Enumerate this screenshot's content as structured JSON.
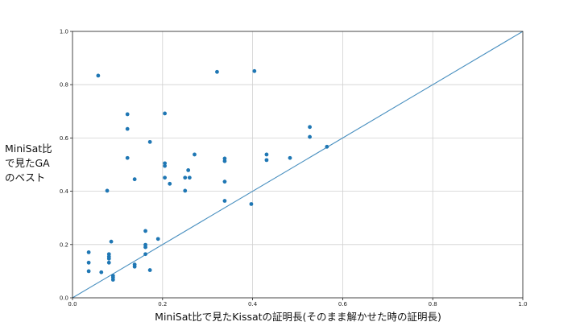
{
  "chart_data": {
    "type": "scatter",
    "title": "",
    "xlabel": "MiniSat比で見たKissatの証明長(そのまま解かせた時の証明長)",
    "ylabel": "MiniSat比\nで見たGA\nのベスト",
    "xlim": [
      0,
      1
    ],
    "ylim": [
      0,
      1
    ],
    "xticks": [
      "0.0",
      "0.2",
      "0.4",
      "0.6",
      "0.8",
      "1.0"
    ],
    "yticks": [
      "0.0",
      "0.2",
      "0.4",
      "0.6",
      "0.8",
      "1.0"
    ],
    "grid": true,
    "reference_line": {
      "from": [
        0,
        0
      ],
      "to": [
        1,
        1
      ]
    },
    "point_color": "#1f77b4",
    "line_color": "#4a90c0",
    "points": [
      [
        0.057,
        0.834
      ],
      [
        0.321,
        0.848
      ],
      [
        0.404,
        0.851
      ],
      [
        0.122,
        0.689
      ],
      [
        0.205,
        0.692
      ],
      [
        0.122,
        0.634
      ],
      [
        0.527,
        0.641
      ],
      [
        0.527,
        0.604
      ],
      [
        0.172,
        0.585
      ],
      [
        0.565,
        0.567
      ],
      [
        0.271,
        0.538
      ],
      [
        0.431,
        0.538
      ],
      [
        0.122,
        0.525
      ],
      [
        0.338,
        0.523
      ],
      [
        0.338,
        0.513
      ],
      [
        0.431,
        0.517
      ],
      [
        0.483,
        0.525
      ],
      [
        0.205,
        0.505
      ],
      [
        0.205,
        0.495
      ],
      [
        0.257,
        0.479
      ],
      [
        0.205,
        0.451
      ],
      [
        0.25,
        0.451
      ],
      [
        0.26,
        0.451
      ],
      [
        0.138,
        0.445
      ],
      [
        0.216,
        0.428
      ],
      [
        0.338,
        0.436
      ],
      [
        0.077,
        0.402
      ],
      [
        0.25,
        0.402
      ],
      [
        0.338,
        0.364
      ],
      [
        0.397,
        0.352
      ],
      [
        0.162,
        0.251
      ],
      [
        0.19,
        0.221
      ],
      [
        0.086,
        0.211
      ],
      [
        0.162,
        0.199
      ],
      [
        0.162,
        0.19
      ],
      [
        0.036,
        0.171
      ],
      [
        0.162,
        0.164
      ],
      [
        0.081,
        0.164
      ],
      [
        0.081,
        0.155
      ],
      [
        0.081,
        0.147
      ],
      [
        0.036,
        0.132
      ],
      [
        0.081,
        0.132
      ],
      [
        0.138,
        0.125
      ],
      [
        0.138,
        0.117
      ],
      [
        0.172,
        0.104
      ],
      [
        0.036,
        0.1
      ],
      [
        0.064,
        0.096
      ],
      [
        0.09,
        0.083
      ],
      [
        0.09,
        0.077
      ],
      [
        0.09,
        0.068
      ]
    ]
  }
}
